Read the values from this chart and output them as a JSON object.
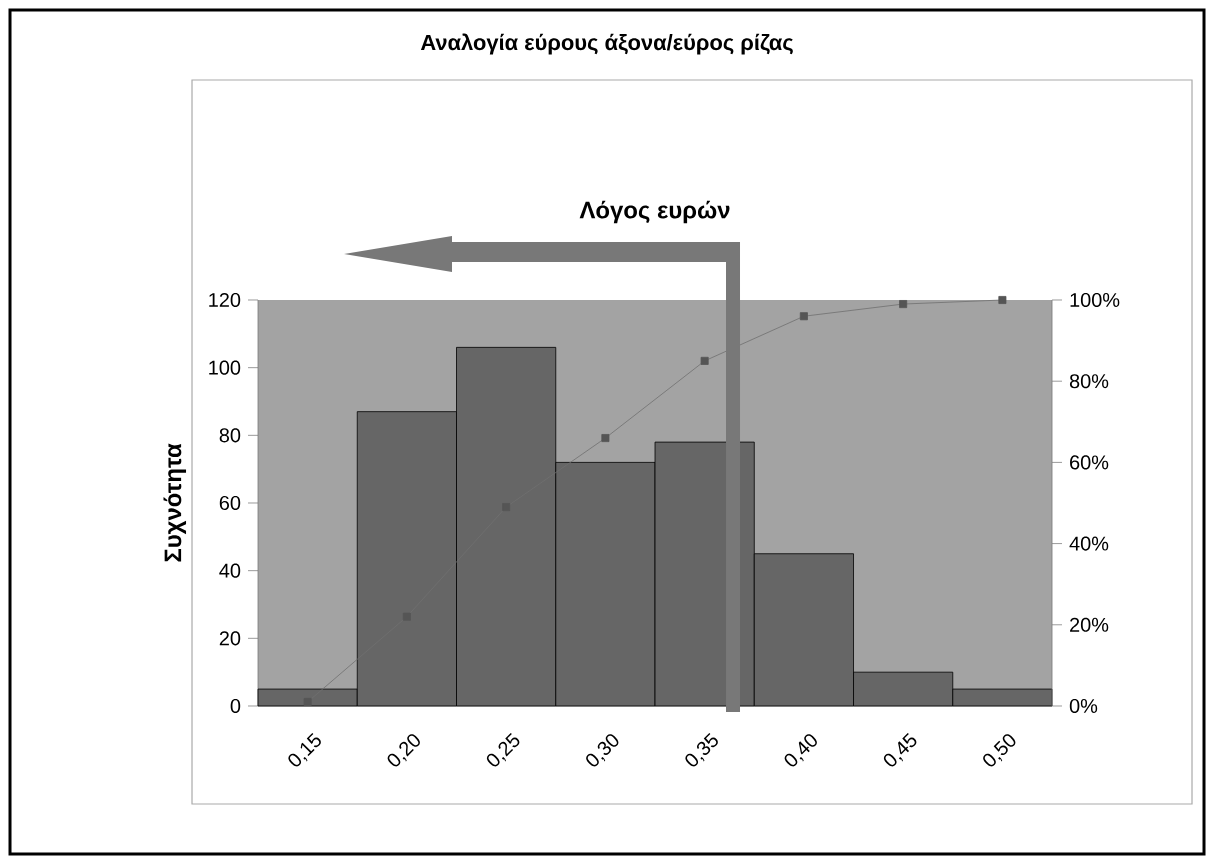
{
  "chart_data": {
    "type": "bar",
    "title": "Αναλογία εύρους άξονα/εύρος ρίζας",
    "subtitle": "Λόγος ευρών",
    "ylabel": "Συχνότητα",
    "categories": [
      "0,15",
      "0,20",
      "0,25",
      "0,30",
      "0,35",
      "0,40",
      "0,45",
      "0,50"
    ],
    "series": [
      {
        "type": "bar",
        "color": "#666666",
        "values": [
          5,
          87,
          106,
          72,
          78,
          45,
          10,
          5
        ]
      },
      {
        "type": "line",
        "axis": "y2",
        "color": "#707070",
        "marker": "square",
        "values": [
          1,
          22,
          49,
          66,
          85,
          96,
          99,
          100
        ]
      }
    ],
    "ylim": [
      0,
      120
    ],
    "yticks": [
      0,
      20,
      40,
      60,
      80,
      100,
      120
    ],
    "y2lim": [
      0,
      100
    ],
    "y2ticks": [
      {
        "value": 0,
        "label": "0%"
      },
      {
        "value": 20,
        "label": "20%"
      },
      {
        "value": 40,
        "label": "40%"
      },
      {
        "value": 60,
        "label": "60%"
      },
      {
        "value": 80,
        "label": "80%"
      },
      {
        "value": 100,
        "label": "100%"
      }
    ]
  }
}
